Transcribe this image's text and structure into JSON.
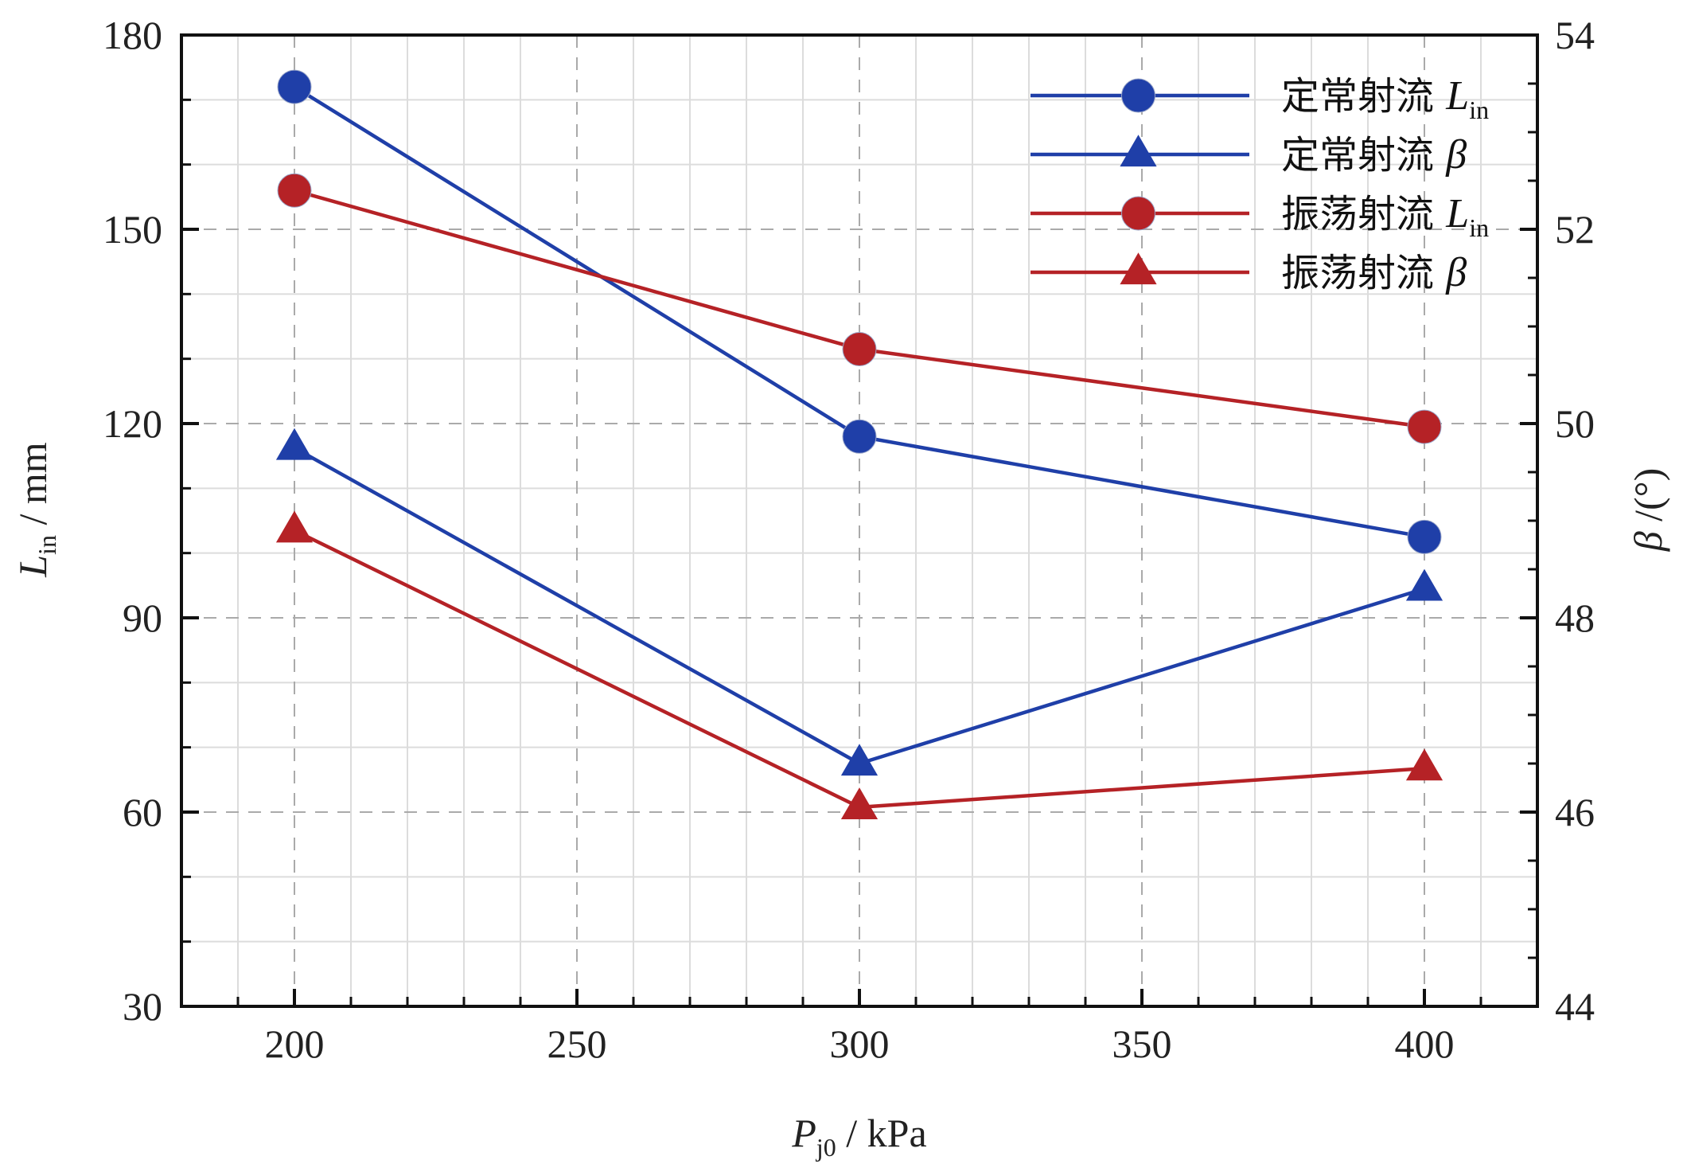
{
  "chart_data": {
    "type": "line",
    "x_axis": {
      "label": "P",
      "label_sub": "j0",
      "label_unit": " / kPa",
      "range": [
        180,
        420
      ],
      "ticks": [
        200,
        250,
        300,
        350,
        400
      ]
    },
    "y_axis_left": {
      "label": "L",
      "label_sub": "in",
      "label_unit": " / mm",
      "range": [
        30,
        180
      ],
      "ticks": [
        30,
        60,
        90,
        120,
        150,
        180
      ]
    },
    "y_axis_right": {
      "label": "β",
      "label_unit": " /(°)",
      "range": [
        44,
        54
      ],
      "ticks": [
        44,
        46,
        48,
        50,
        52,
        54
      ]
    },
    "grid": true,
    "legend_position": "top-right",
    "series": [
      {
        "name": "定常射流",
        "symbol": "L",
        "symbol_sub": "in",
        "axis": "left",
        "marker": "circle",
        "color": "#1f3fa8",
        "x": [
          200,
          300,
          400
        ],
        "y": [
          172,
          118,
          102.5
        ]
      },
      {
        "name": "定常射流",
        "symbol": "β",
        "symbol_sub": "",
        "axis": "right",
        "marker": "triangle",
        "color": "#1f3fa8",
        "x": [
          200,
          300,
          400
        ],
        "y": [
          49.75,
          46.5,
          48.3
        ]
      },
      {
        "name": "振荡射流",
        "symbol": "L",
        "symbol_sub": "in",
        "axis": "left",
        "marker": "circle",
        "color": "#b52226",
        "x": [
          200,
          300,
          400
        ],
        "y": [
          156,
          131.5,
          119.5
        ]
      },
      {
        "name": "振荡射流",
        "symbol": "β",
        "symbol_sub": "",
        "axis": "right",
        "marker": "triangle",
        "color": "#b52226",
        "x": [
          200,
          300,
          400
        ],
        "y": [
          48.9,
          46.05,
          46.45
        ]
      }
    ]
  }
}
